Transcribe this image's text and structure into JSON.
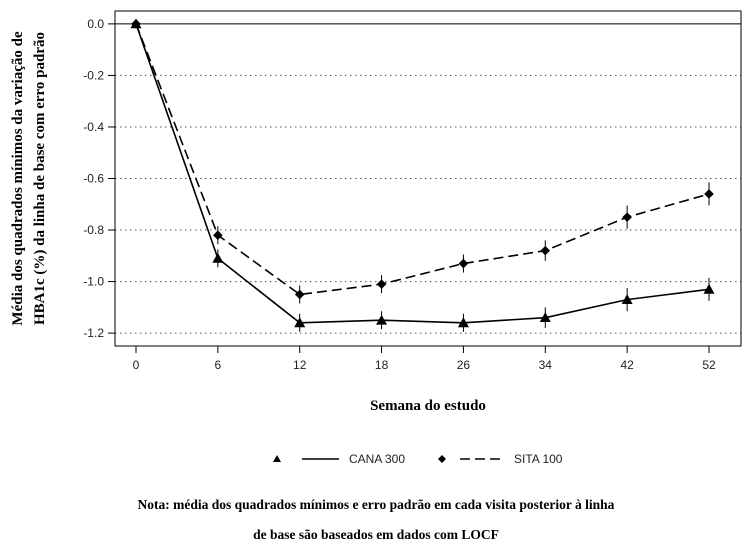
{
  "chart_data": {
    "type": "line",
    "xlabel": "Semana do estudo",
    "ylabel": [
      "Média dos quadrados mínimos da variação de",
      "HBA1c (%) da linha de base com erro padrão"
    ],
    "x_ticks": [
      "0",
      "6",
      "12",
      "18",
      "26",
      "34",
      "42",
      "52"
    ],
    "y_ticks": [
      "0.0",
      "-0.2",
      "-0.4",
      "-0.6",
      "-0.8",
      "-1.0",
      "-1.2"
    ],
    "ylim": [
      -1.25,
      0.05
    ],
    "grid": "horizontal dotted",
    "legend_placement": "bottom",
    "series": [
      {
        "name": "CANA 300",
        "line_style": "solid",
        "marker": "triangle",
        "color": "#000000",
        "values": [
          0.0,
          -0.91,
          -1.16,
          -1.15,
          -1.16,
          -1.14,
          -1.07,
          -1.03
        ],
        "errors": [
          0.0,
          0.035,
          0.035,
          0.035,
          0.035,
          0.04,
          0.045,
          0.045
        ]
      },
      {
        "name": "SITA 100",
        "line_style": "dashed",
        "marker": "diamond",
        "color": "#000000",
        "values": [
          0.0,
          -0.82,
          -1.05,
          -1.01,
          -0.93,
          -0.88,
          -0.75,
          -0.66
        ],
        "errors": [
          0.0,
          0.035,
          0.035,
          0.035,
          0.035,
          0.04,
          0.045,
          0.045
        ]
      }
    ],
    "note": [
      "Nota: média dos quadrados mínimos e erro padrão em cada visita posterior à linha",
      "de base são baseados em dados com LOCF"
    ]
  }
}
